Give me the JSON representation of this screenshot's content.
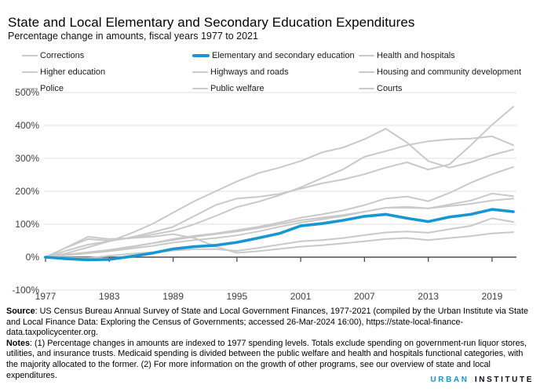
{
  "header": {
    "title": "State and Local Elementary and Secondary Education Expenditures",
    "subtitle": "Percentage change in amounts, fiscal years 1977 to 2021"
  },
  "chart_data": {
    "type": "line",
    "title": "State and Local Elementary and Secondary Education Expenditures",
    "xlabel": "",
    "ylabel": "",
    "grid": true,
    "legend_position": "top",
    "xlim": [
      1977,
      2021
    ],
    "ylim": [
      -100,
      500
    ],
    "x_ticks": [
      1977,
      1983,
      1989,
      1995,
      2001,
      2007,
      2013,
      2019
    ],
    "y_ticks": [
      500,
      400,
      300,
      200,
      100,
      0,
      -100
    ],
    "y_tick_labels": [
      "500%",
      "400%",
      "300%",
      "200%",
      "100%",
      "0%",
      "-100%"
    ],
    "x": [
      1977,
      1979,
      1981,
      1983,
      1985,
      1987,
      1989,
      1991,
      1993,
      1995,
      1997,
      1999,
      2001,
      2003,
      2005,
      2007,
      2009,
      2011,
      2013,
      2015,
      2017,
      2019,
      2021
    ],
    "accent_color": "#1696d2",
    "gray_color": "#c9c9c9",
    "series": [
      {
        "name": "Corrections",
        "emphasis": false,
        "color": "#c9c9c9",
        "values": [
          0,
          12,
          30,
          48,
          72,
          100,
          135,
          170,
          200,
          230,
          255,
          272,
          292,
          318,
          333,
          358,
          390,
          348,
          292,
          272,
          288,
          310,
          327
        ]
      },
      {
        "name": "Elementary and secondary education",
        "emphasis": true,
        "color": "#1696d2",
        "values": [
          0,
          -5,
          -8,
          -7,
          2,
          12,
          25,
          32,
          36,
          45,
          58,
          72,
          95,
          102,
          112,
          124,
          130,
          118,
          108,
          122,
          130,
          145,
          138
        ]
      },
      {
        "name": "Health and hospitals",
        "emphasis": false,
        "color": "#c9c9c9",
        "values": [
          0,
          30,
          55,
          50,
          58,
          68,
          80,
          100,
          125,
          152,
          168,
          188,
          212,
          240,
          267,
          305,
          322,
          340,
          352,
          358,
          360,
          367,
          340
        ]
      },
      {
        "name": "Higher education",
        "emphasis": false,
        "color": "#c9c9c9",
        "values": [
          0,
          8,
          14,
          20,
          30,
          42,
          55,
          65,
          72,
          82,
          92,
          105,
          120,
          130,
          142,
          158,
          178,
          184,
          170,
          195,
          226,
          252,
          274
        ]
      },
      {
        "name": "Highways and roads",
        "emphasis": false,
        "color": "#c9c9c9",
        "values": [
          0,
          -2,
          -3,
          4,
          10,
          15,
          20,
          24,
          24,
          19,
          28,
          38,
          48,
          52,
          58,
          67,
          75,
          78,
          74,
          85,
          95,
          118,
          107
        ]
      },
      {
        "name": "Housing and community development",
        "emphasis": false,
        "color": "#c9c9c9",
        "values": [
          0,
          30,
          62,
          55,
          58,
          62,
          70,
          58,
          32,
          13,
          18,
          25,
          32,
          36,
          42,
          48,
          55,
          58,
          52,
          58,
          64,
          72,
          76
        ]
      },
      {
        "name": "Police",
        "emphasis": false,
        "color": "#c9c9c9",
        "values": [
          0,
          6,
          12,
          18,
          26,
          34,
          44,
          52,
          58,
          66,
          78,
          92,
          105,
          115,
          125,
          138,
          150,
          150,
          148,
          160,
          172,
          193,
          185
        ]
      },
      {
        "name": "Public welfare",
        "emphasis": false,
        "color": "#c9c9c9",
        "values": [
          0,
          20,
          38,
          48,
          60,
          75,
          92,
          125,
          158,
          178,
          183,
          192,
          208,
          224,
          236,
          252,
          272,
          288,
          266,
          282,
          340,
          402,
          457
        ]
      },
      {
        "name": "Courts",
        "emphasis": false,
        "color": "#c9c9c9",
        "values": [
          0,
          8,
          15,
          22,
          32,
          42,
          52,
          62,
          70,
          78,
          88,
          100,
          112,
          120,
          128,
          138,
          150,
          153,
          148,
          155,
          162,
          172,
          178
        ]
      }
    ]
  },
  "footer": {
    "source_label": "Source",
    "source_text": ": US Census Bureau Annual Survey of State and Local Government Finances, 1977-2021 (compiled by the Urban Institute via State and Local Finance Data: Exploring the Census of Governments; accessed 26-Mar-2024 16:00), https://state-local-finance-data.taxpolicycenter.org.",
    "notes_label": "Notes",
    "notes_text": ": (1) Percentage changes in amounts are indexed to 1977 spending levels. Totals exclude spending on government-run liquor stores, utilities, and insurance trusts. Medicaid spending is divided between the public welfare and health and hospitals functional categories, with the majority allocated to the former. (2) For more information on the growth of other programs, see our overview of state and local expenditures."
  },
  "logo": {
    "part1": "URBAN",
    "part2": "INSTITUTE"
  }
}
